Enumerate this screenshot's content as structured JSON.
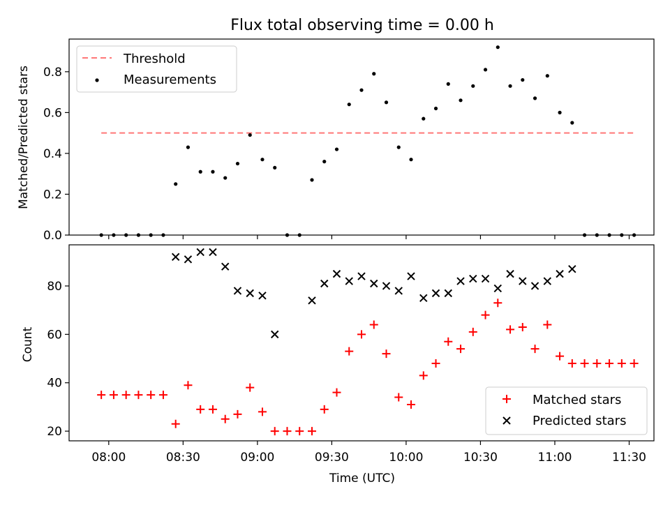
{
  "figure": {
    "title": "Flux total observing time = 0.00 h",
    "xlabel": "Time (UTC)"
  },
  "chart_data": [
    {
      "type": "scatter",
      "title": "Flux total observing time = 0.00 h",
      "ylabel": "Matched/Predicted stars",
      "ylim": [
        0,
        0.96
      ],
      "y_ticks": [
        "0.0",
        "0.2",
        "0.4",
        "0.6",
        "0.8"
      ],
      "threshold": {
        "name": "Threshold",
        "y": 0.5,
        "x_range": [
          "07:57",
          "11:32"
        ],
        "color": "#ff7777",
        "style": "dashed"
      },
      "legend_placement": "upper left",
      "series": [
        {
          "name": "Measurements",
          "color": "#000000",
          "marker": "dot",
          "x": [
            "07:57",
            "08:02",
            "08:07",
            "08:12",
            "08:17",
            "08:22",
            "08:27",
            "08:32",
            "08:37",
            "08:42",
            "08:47",
            "08:52",
            "08:57",
            "09:02",
            "09:07",
            "09:12",
            "09:17",
            "09:22",
            "09:27",
            "09:32",
            "09:37",
            "09:42",
            "09:47",
            "09:52",
            "09:57",
            "10:02",
            "10:07",
            "10:12",
            "10:17",
            "10:22",
            "10:27",
            "10:32",
            "10:37",
            "10:42",
            "10:47",
            "10:52",
            "10:57",
            "11:02",
            "11:07",
            "11:12",
            "11:17",
            "11:22",
            "11:27",
            "11:32"
          ],
          "y": [
            0.0,
            0.0,
            0.0,
            0.0,
            0.0,
            0.0,
            0.25,
            0.43,
            0.31,
            0.31,
            0.28,
            0.35,
            0.49,
            0.37,
            0.33,
            0.0,
            0.0,
            0.27,
            0.36,
            0.42,
            0.64,
            0.71,
            0.79,
            0.65,
            0.43,
            0.37,
            0.57,
            0.62,
            0.74,
            0.66,
            0.73,
            0.81,
            0.92,
            0.73,
            0.76,
            0.67,
            0.78,
            0.6,
            0.55,
            0.0,
            0.0,
            0.0,
            0.0,
            0.0
          ]
        }
      ]
    },
    {
      "type": "scatter",
      "xlabel": "Time (UTC)",
      "ylabel": "Count",
      "ylim": [
        16,
        97
      ],
      "y_ticks": [
        "20",
        "40",
        "60",
        "80"
      ],
      "x_ticks": [
        "08:00",
        "08:30",
        "09:00",
        "09:30",
        "10:00",
        "10:30",
        "11:00",
        "11:30"
      ],
      "x_range": [
        "07:44",
        "11:40"
      ],
      "legend_placement": "lower right",
      "series": [
        {
          "name": "Matched stars",
          "color": "#ff0000",
          "marker": "plus",
          "x": [
            "07:57",
            "08:02",
            "08:07",
            "08:12",
            "08:17",
            "08:22",
            "08:27",
            "08:32",
            "08:37",
            "08:42",
            "08:47",
            "08:52",
            "08:57",
            "09:02",
            "09:07",
            "09:12",
            "09:17",
            "09:22",
            "09:27",
            "09:32",
            "09:37",
            "09:42",
            "09:47",
            "09:52",
            "09:57",
            "10:02",
            "10:07",
            "10:12",
            "10:17",
            "10:22",
            "10:27",
            "10:32",
            "10:37",
            "10:42",
            "10:47",
            "10:52",
            "10:57",
            "11:02",
            "11:07",
            "11:12",
            "11:17",
            "11:22",
            "11:27",
            "11:32"
          ],
          "y": [
            35,
            35,
            35,
            35,
            35,
            35,
            23,
            39,
            29,
            29,
            25,
            27,
            38,
            28,
            20,
            20,
            20,
            20,
            29,
            36,
            53,
            60,
            64,
            52,
            34,
            31,
            43,
            48,
            57,
            54,
            61,
            68,
            73,
            62,
            63,
            54,
            64,
            51,
            48,
            48,
            48,
            48,
            48,
            48
          ]
        },
        {
          "name": "Predicted stars",
          "color": "#000000",
          "marker": "x",
          "x": [
            "08:27",
            "08:32",
            "08:37",
            "08:42",
            "08:47",
            "08:52",
            "08:57",
            "09:02",
            "09:07",
            "09:22",
            "09:27",
            "09:32",
            "09:37",
            "09:42",
            "09:47",
            "09:52",
            "09:57",
            "10:02",
            "10:07",
            "10:12",
            "10:17",
            "10:22",
            "10:27",
            "10:32",
            "10:37",
            "10:42",
            "10:47",
            "10:52",
            "10:57",
            "11:02",
            "11:07"
          ],
          "y": [
            92,
            91,
            94,
            94,
            88,
            78,
            77,
            76,
            60,
            74,
            81,
            85,
            82,
            84,
            81,
            80,
            78,
            84,
            75,
            77,
            77,
            82,
            83,
            83,
            79,
            85,
            82,
            80,
            82,
            85,
            87
          ]
        }
      ]
    }
  ]
}
